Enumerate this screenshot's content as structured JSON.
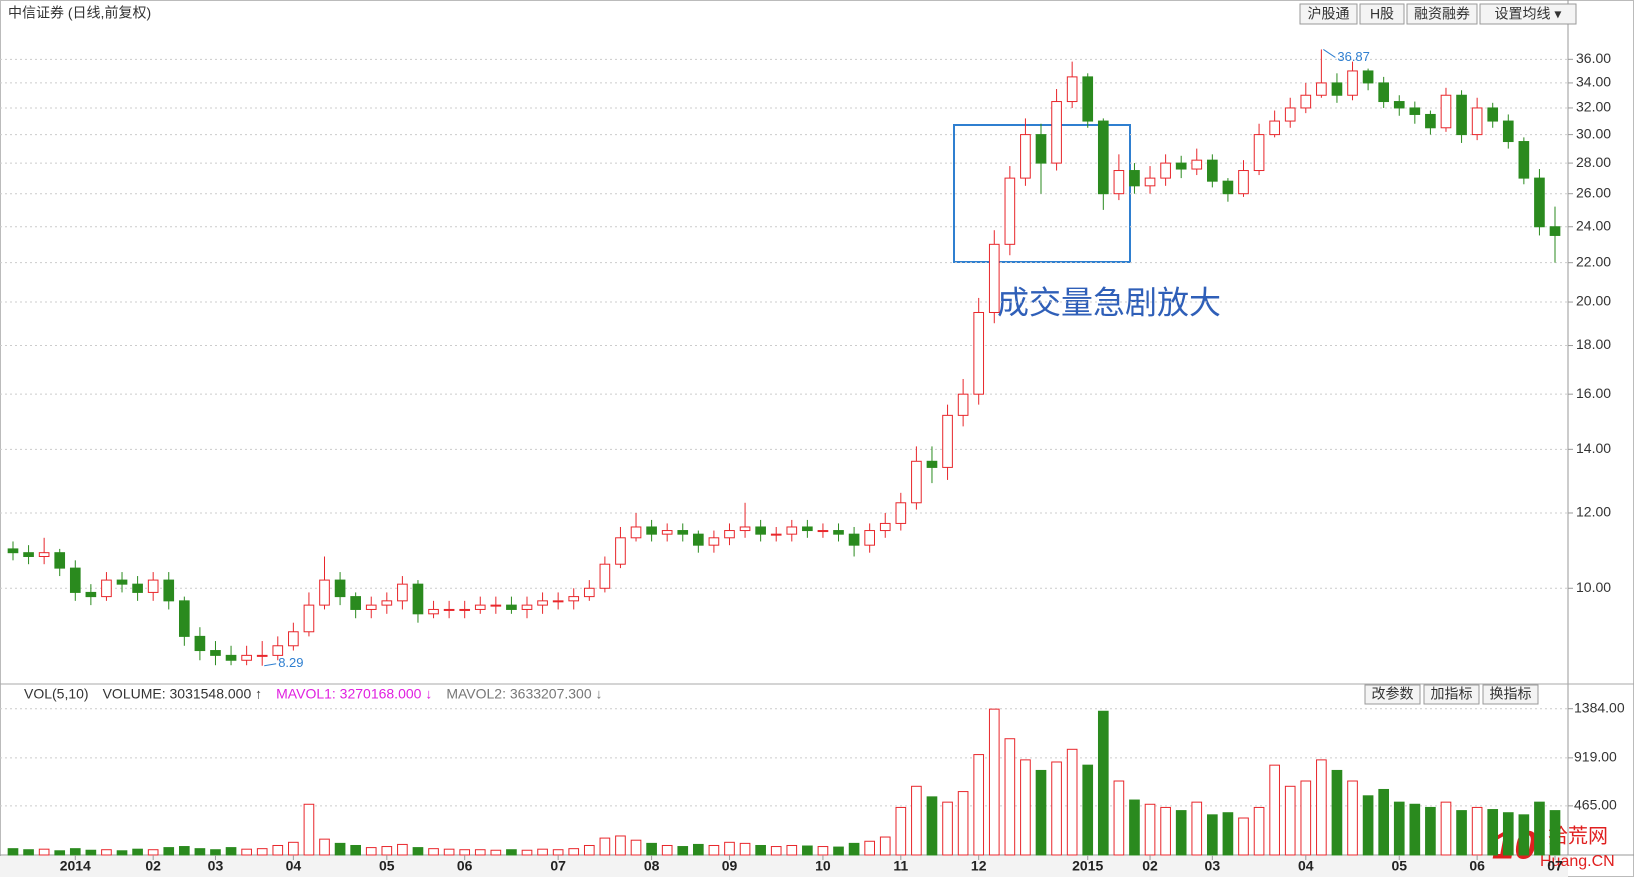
{
  "chart_data": {
    "type": "candlestick",
    "title": "中信证券 (日线,前复权)",
    "annotation": "成交量急剧放大",
    "up_color": "#e8262b",
    "down_color": "#2a8a1e",
    "log_scale": true,
    "grid": true,
    "categories": [
      null,
      null,
      null,
      null,
      "2014",
      null,
      null,
      null,
      null,
      "02",
      null,
      null,
      null,
      "03",
      null,
      null,
      null,
      null,
      "04",
      null,
      null,
      null,
      null,
      null,
      "05",
      null,
      null,
      null,
      null,
      "06",
      null,
      null,
      null,
      null,
      null,
      "07",
      null,
      null,
      null,
      null,
      null,
      "08",
      null,
      null,
      null,
      null,
      "09",
      null,
      null,
      null,
      null,
      null,
      "10",
      null,
      null,
      null,
      null,
      "11",
      null,
      null,
      null,
      null,
      "12",
      null,
      null,
      null,
      null,
      null,
      null,
      "2015",
      null,
      null,
      null,
      "02",
      null,
      null,
      null,
      "03",
      null,
      null,
      null,
      null,
      null,
      "04",
      null,
      null,
      null,
      null,
      null,
      "05",
      null,
      null,
      null,
      null,
      "06",
      null,
      null,
      null,
      null,
      "07"
    ],
    "open": [
      11.0,
      10.9,
      10.8,
      10.9,
      10.5,
      9.9,
      9.8,
      10.2,
      10.1,
      9.9,
      10.2,
      9.7,
      8.9,
      8.6,
      8.5,
      8.4,
      8.5,
      8.5,
      8.7,
      9.0,
      9.6,
      10.2,
      9.8,
      9.5,
      9.6,
      9.7,
      10.1,
      9.4,
      9.5,
      9.5,
      9.5,
      9.6,
      9.6,
      9.5,
      9.6,
      9.7,
      9.7,
      9.8,
      10.0,
      10.6,
      11.3,
      11.6,
      11.4,
      11.5,
      11.4,
      11.1,
      11.3,
      11.5,
      11.6,
      11.4,
      11.4,
      11.6,
      11.5,
      11.5,
      11.4,
      11.1,
      11.5,
      11.7,
      12.3,
      13.6,
      13.4,
      15.2,
      16.0,
      19.5,
      23.0,
      27.0,
      30.0,
      28.0,
      32.5,
      34.5,
      31.0,
      26.0,
      27.5,
      26.5,
      27.0,
      28.0,
      27.6,
      28.2,
      26.8,
      26.0,
      27.5,
      30.0,
      31.0,
      32.0,
      33.0,
      34.0,
      33.0,
      35.0,
      34.0,
      32.5,
      32.0,
      31.5,
      30.5,
      33.0,
      30.0,
      32.0,
      31.0,
      29.5,
      27.0,
      24.0
    ],
    "high": [
      11.2,
      11.1,
      11.3,
      11.0,
      10.7,
      10.1,
      10.4,
      10.4,
      10.3,
      10.4,
      10.4,
      9.8,
      9.1,
      8.8,
      8.7,
      8.7,
      8.8,
      8.9,
      9.2,
      9.9,
      10.8,
      10.4,
      9.9,
      9.8,
      9.9,
      10.3,
      10.2,
      9.7,
      9.7,
      9.7,
      9.8,
      9.8,
      9.8,
      9.8,
      9.9,
      9.9,
      10.0,
      10.2,
      10.8,
      11.6,
      12.0,
      11.8,
      11.7,
      11.7,
      11.5,
      11.5,
      11.7,
      12.3,
      11.8,
      11.6,
      11.8,
      11.8,
      11.7,
      11.7,
      11.6,
      11.7,
      12.0,
      12.6,
      14.1,
      14.1,
      15.6,
      16.6,
      20.2,
      23.8,
      27.8,
      31.2,
      30.8,
      33.5,
      35.8,
      34.8,
      31.2,
      28.6,
      28.0,
      27.8,
      28.6,
      28.5,
      29.0,
      28.6,
      27.0,
      28.2,
      30.8,
      31.8,
      32.8,
      34.0,
      36.87,
      34.8,
      35.8,
      35.2,
      34.5,
      33.0,
      32.5,
      31.8,
      33.6,
      33.4,
      32.8,
      32.4,
      31.5,
      29.8,
      27.6,
      25.2
    ],
    "low": [
      10.7,
      10.6,
      10.6,
      10.3,
      9.7,
      9.6,
      9.7,
      9.9,
      9.7,
      9.7,
      9.5,
      8.7,
      8.4,
      8.3,
      8.3,
      8.3,
      8.29,
      8.4,
      8.6,
      8.9,
      9.5,
      9.6,
      9.3,
      9.3,
      9.4,
      9.5,
      9.2,
      9.3,
      9.3,
      9.3,
      9.4,
      9.4,
      9.4,
      9.3,
      9.4,
      9.5,
      9.5,
      9.7,
      9.9,
      10.5,
      11.2,
      11.2,
      11.2,
      11.2,
      10.9,
      10.9,
      11.1,
      11.3,
      11.2,
      11.2,
      11.2,
      11.3,
      11.3,
      11.2,
      10.8,
      10.9,
      11.3,
      11.5,
      12.1,
      12.9,
      13.0,
      14.8,
      15.6,
      19.0,
      22.4,
      26.5,
      26.0,
      27.5,
      32.0,
      30.5,
      25.0,
      25.6,
      26.0,
      26.0,
      26.5,
      27.0,
      27.2,
      26.4,
      25.5,
      25.8,
      27.2,
      29.8,
      30.5,
      31.6,
      32.8,
      32.4,
      32.6,
      33.4,
      32.0,
      31.4,
      30.8,
      30.0,
      30.2,
      29.4,
      29.6,
      30.5,
      29.0,
      26.6,
      23.5,
      22.0
    ],
    "close": [
      10.9,
      10.8,
      10.9,
      10.5,
      9.9,
      9.8,
      10.2,
      10.1,
      9.9,
      10.2,
      9.7,
      8.9,
      8.6,
      8.5,
      8.4,
      8.5,
      8.5,
      8.7,
      9.0,
      9.6,
      10.2,
      9.8,
      9.5,
      9.6,
      9.7,
      10.1,
      9.4,
      9.5,
      9.5,
      9.5,
      9.6,
      9.6,
      9.5,
      9.6,
      9.7,
      9.7,
      9.8,
      10.0,
      10.6,
      11.3,
      11.6,
      11.4,
      11.5,
      11.4,
      11.1,
      11.3,
      11.5,
      11.6,
      11.4,
      11.4,
      11.6,
      11.5,
      11.5,
      11.4,
      11.1,
      11.5,
      11.7,
      12.3,
      13.6,
      13.4,
      15.2,
      16.0,
      19.5,
      23.0,
      27.0,
      30.0,
      28.0,
      32.5,
      34.5,
      31.0,
      26.0,
      27.5,
      26.5,
      27.0,
      28.0,
      27.6,
      28.2,
      26.8,
      26.0,
      27.5,
      30.0,
      31.0,
      32.0,
      33.0,
      34.0,
      33.0,
      35.0,
      34.0,
      32.5,
      32.0,
      31.5,
      30.5,
      33.0,
      30.0,
      32.0,
      31.0,
      29.5,
      27.0,
      24.0,
      23.5
    ],
    "ylim": [
      7.95,
      39.5
    ],
    "yticks": [
      {
        "value": 10,
        "label": "10.00"
      },
      {
        "value": 12,
        "label": "12.00"
      },
      {
        "value": 14,
        "label": "14.00"
      },
      {
        "value": 16,
        "label": "16.00"
      },
      {
        "value": 18,
        "label": "18.00"
      },
      {
        "value": 20,
        "label": "20.00"
      },
      {
        "value": 22,
        "label": "22.00"
      },
      {
        "value": 24,
        "label": "24.00"
      },
      {
        "value": 26,
        "label": "26.00"
      },
      {
        "value": 28,
        "label": "28.00"
      },
      {
        "value": 30,
        "label": "30.00"
      },
      {
        "value": 32,
        "label": "32.00"
      },
      {
        "value": 34,
        "label": "34.00"
      },
      {
        "value": 36,
        "label": "36.00"
      }
    ],
    "volume": {
      "header": [
        "VOL(5,10)",
        "VOLUME: 3031548.000 ↑",
        "MAVOL1: 3270168.000 ↓",
        "MAVOL2: 3633207.300 ↓"
      ],
      "values": [
        60,
        50,
        55,
        40,
        60,
        45,
        50,
        40,
        55,
        50,
        70,
        80,
        60,
        50,
        70,
        55,
        60,
        90,
        120,
        480,
        150,
        110,
        90,
        70,
        80,
        100,
        70,
        60,
        55,
        50,
        50,
        45,
        50,
        45,
        55,
        50,
        60,
        90,
        160,
        180,
        140,
        110,
        90,
        80,
        100,
        90,
        120,
        110,
        90,
        80,
        90,
        85,
        80,
        75,
        110,
        130,
        170,
        450,
        650,
        550,
        500,
        600,
        950,
        1380,
        1100,
        900,
        800,
        880,
        1000,
        850,
        1360,
        700,
        520,
        480,
        450,
        420,
        500,
        380,
        400,
        350,
        450,
        850,
        650,
        700,
        900,
        800,
        700,
        560,
        620,
        500,
        480,
        450,
        500,
        420,
        450,
        430,
        400,
        380,
        500,
        420
      ],
      "ylim": [
        0,
        1580
      ],
      "yticks": [
        {
          "value": 465,
          "label": "465.00"
        },
        {
          "value": 919,
          "label": "919.00"
        },
        {
          "value": 1384,
          "label": "1384.00"
        }
      ]
    }
  },
  "toolbar": [
    "沪股通",
    "H股",
    "融资融券",
    "设置均线 ▾"
  ],
  "indicator_buttons": [
    "改参数",
    "加指标",
    "换指标"
  ],
  "watermark": {
    "number": "10",
    "site": "拾荒网",
    "domain": "Huang.CN"
  }
}
